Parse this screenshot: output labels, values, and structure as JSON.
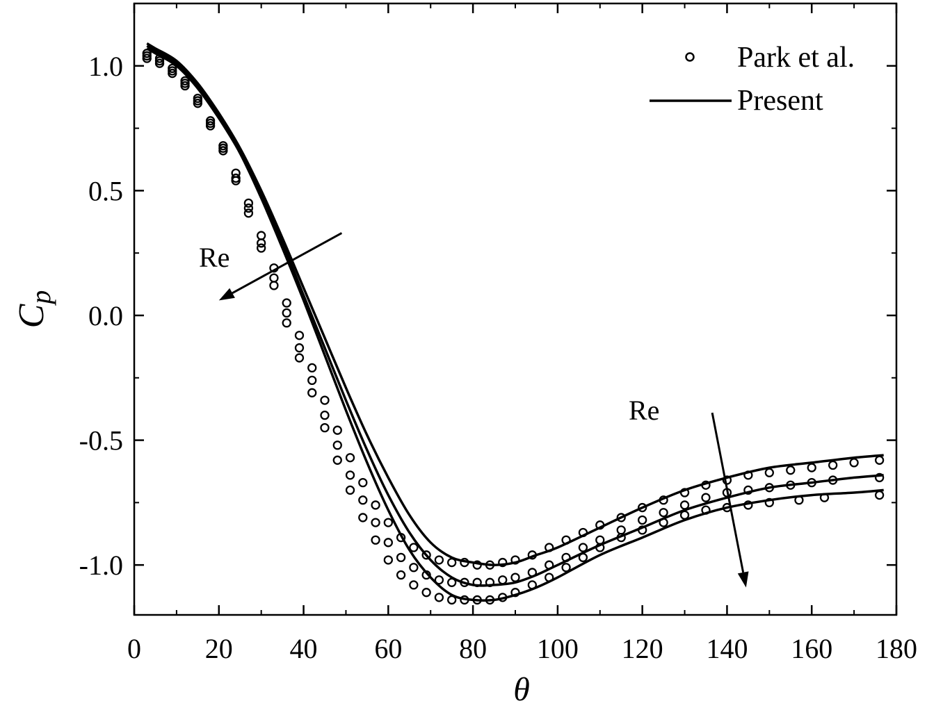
{
  "chart_data": {
    "type": "line",
    "xlabel": "θ",
    "ylabel": "C",
    "ylabel_sub": "p",
    "xlim": [
      0,
      180
    ],
    "ylim": [
      -1.2,
      1.25
    ],
    "xticks": [
      0,
      20,
      40,
      60,
      80,
      100,
      120,
      140,
      160,
      180
    ],
    "xtick_labels": [
      "0",
      "20",
      "40",
      "60",
      "80",
      "100",
      "120",
      "140",
      "160",
      "180"
    ],
    "yticks": [
      1.0,
      0.5,
      0.0,
      -0.5,
      -1.0
    ],
    "ytick_labels": [
      "1.0",
      "0.5",
      "0.0",
      "-0.5",
      "-1.0"
    ],
    "grid": false,
    "legend": {
      "position": "top-right",
      "entries": [
        {
          "label": "Park et al.",
          "marker": "circle"
        },
        {
          "label": "Present",
          "marker": "line"
        }
      ]
    },
    "annotations": [
      {
        "text": "Re",
        "near": "upper-left descending branch",
        "arrow_from": [
          49,
          0.33
        ],
        "arrow_to": [
          20,
          0.06
        ]
      },
      {
        "text": "Re",
        "near": "right recovery region",
        "arrow_from": [
          136.5,
          -0.39
        ],
        "arrow_to": [
          144.5,
          -1.09
        ]
      }
    ],
    "present_series": [
      {
        "name": "Present (Re 1)",
        "x": [
          3,
          5,
          10,
          15,
          20,
          25,
          30,
          35,
          40,
          45,
          50,
          55,
          60,
          65,
          70,
          75,
          80,
          85,
          90,
          95,
          100,
          110,
          120,
          130,
          140,
          150,
          160,
          170,
          177
        ],
        "y": [
          1.09,
          1.07,
          1.02,
          0.93,
          0.81,
          0.67,
          0.5,
          0.31,
          0.11,
          -0.09,
          -0.29,
          -0.48,
          -0.65,
          -0.8,
          -0.91,
          -0.97,
          -0.99,
          -1.0,
          -0.99,
          -0.96,
          -0.93,
          -0.85,
          -0.77,
          -0.7,
          -0.65,
          -0.61,
          -0.59,
          -0.57,
          -0.56
        ]
      },
      {
        "name": "Present (Re 2)",
        "x": [
          3,
          5,
          10,
          15,
          20,
          25,
          30,
          35,
          40,
          45,
          50,
          55,
          60,
          65,
          70,
          75,
          80,
          85,
          90,
          95,
          100,
          110,
          120,
          130,
          140,
          150,
          160,
          170,
          177
        ],
        "y": [
          1.08,
          1.06,
          1.01,
          0.92,
          0.8,
          0.66,
          0.48,
          0.29,
          0.08,
          -0.13,
          -0.34,
          -0.54,
          -0.72,
          -0.87,
          -0.98,
          -1.05,
          -1.08,
          -1.08,
          -1.07,
          -1.04,
          -1.0,
          -0.92,
          -0.85,
          -0.78,
          -0.73,
          -0.69,
          -0.67,
          -0.65,
          -0.64
        ]
      },
      {
        "name": "Present (Re 3)",
        "x": [
          3,
          5,
          10,
          15,
          20,
          25,
          30,
          35,
          40,
          45,
          50,
          55,
          60,
          65,
          70,
          75,
          80,
          85,
          90,
          95,
          100,
          110,
          120,
          130,
          140,
          150,
          160,
          170,
          177
        ],
        "y": [
          1.07,
          1.05,
          1.0,
          0.91,
          0.79,
          0.65,
          0.47,
          0.27,
          0.06,
          -0.16,
          -0.38,
          -0.59,
          -0.78,
          -0.94,
          -1.05,
          -1.12,
          -1.14,
          -1.14,
          -1.12,
          -1.09,
          -1.05,
          -0.96,
          -0.89,
          -0.82,
          -0.77,
          -0.74,
          -0.72,
          -0.71,
          -0.7
        ]
      }
    ],
    "park_series": [
      {
        "name": "Park et al. (Re 1)",
        "x": [
          3,
          6,
          9,
          12,
          15,
          18,
          21,
          24,
          27,
          30,
          33,
          36,
          39,
          42,
          45,
          48,
          51,
          54,
          57,
          60,
          63,
          66,
          69,
          72,
          75,
          78,
          81,
          84,
          87,
          90,
          94,
          98,
          102,
          106,
          110,
          115,
          120,
          125,
          130,
          135,
          140,
          145,
          150,
          155,
          160,
          165,
          170,
          176
        ],
        "y": [
          1.05,
          1.03,
          0.99,
          0.94,
          0.87,
          0.78,
          0.68,
          0.57,
          0.45,
          0.32,
          0.19,
          0.05,
          -0.08,
          -0.21,
          -0.34,
          -0.46,
          -0.57,
          -0.67,
          -0.76,
          -0.83,
          -0.89,
          -0.93,
          -0.96,
          -0.98,
          -0.99,
          -0.99,
          -1.0,
          -1.0,
          -0.99,
          -0.98,
          -0.96,
          -0.93,
          -0.9,
          -0.87,
          -0.84,
          -0.81,
          -0.77,
          -0.74,
          -0.71,
          -0.68,
          -0.66,
          -0.64,
          -0.63,
          -0.62,
          -0.61,
          -0.6,
          -0.59,
          -0.58
        ]
      },
      {
        "name": "Park et al. (Re 2)",
        "x": [
          3,
          6,
          9,
          12,
          15,
          18,
          21,
          24,
          27,
          30,
          33,
          36,
          39,
          42,
          45,
          48,
          51,
          54,
          57,
          60,
          63,
          66,
          69,
          72,
          75,
          78,
          81,
          84,
          87,
          90,
          94,
          98,
          102,
          106,
          110,
          115,
          120,
          125,
          130,
          135,
          140,
          145,
          150,
          155,
          160,
          165,
          176
        ],
        "y": [
          1.04,
          1.02,
          0.98,
          0.93,
          0.86,
          0.77,
          0.67,
          0.55,
          0.43,
          0.29,
          0.15,
          0.01,
          -0.13,
          -0.26,
          -0.4,
          -0.52,
          -0.64,
          -0.74,
          -0.83,
          -0.91,
          -0.97,
          -1.01,
          -1.04,
          -1.06,
          -1.07,
          -1.07,
          -1.07,
          -1.07,
          -1.06,
          -1.05,
          -1.03,
          -1.0,
          -0.97,
          -0.93,
          -0.9,
          -0.86,
          -0.82,
          -0.79,
          -0.76,
          -0.73,
          -0.71,
          -0.7,
          -0.69,
          -0.68,
          -0.67,
          -0.66,
          -0.65
        ]
      },
      {
        "name": "Park et al. (Re 3)",
        "x": [
          3,
          6,
          9,
          12,
          15,
          18,
          21,
          24,
          27,
          30,
          33,
          36,
          39,
          42,
          45,
          48,
          51,
          54,
          57,
          60,
          63,
          66,
          69,
          72,
          75,
          78,
          81,
          84,
          87,
          90,
          94,
          98,
          102,
          106,
          110,
          115,
          120,
          125,
          130,
          135,
          140,
          145,
          150,
          157,
          163,
          176
        ],
        "y": [
          1.03,
          1.01,
          0.97,
          0.92,
          0.85,
          0.76,
          0.66,
          0.54,
          0.41,
          0.27,
          0.12,
          -0.03,
          -0.17,
          -0.31,
          -0.45,
          -0.58,
          -0.7,
          -0.81,
          -0.9,
          -0.98,
          -1.04,
          -1.08,
          -1.11,
          -1.13,
          -1.14,
          -1.14,
          -1.14,
          -1.14,
          -1.13,
          -1.11,
          -1.08,
          -1.05,
          -1.01,
          -0.97,
          -0.93,
          -0.89,
          -0.86,
          -0.83,
          -0.8,
          -0.78,
          -0.77,
          -0.76,
          -0.75,
          -0.74,
          -0.73,
          -0.72
        ]
      }
    ]
  }
}
